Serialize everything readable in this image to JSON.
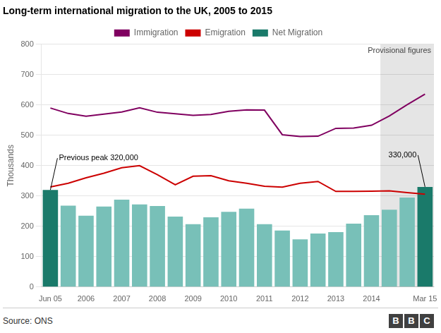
{
  "chart_data": {
    "type": "bar",
    "title": "Long-term international migration to the UK, 2005 to 2015",
    "ylabel": "Thousands",
    "categories": [
      "Jun 05",
      null,
      "2006",
      null,
      "2007",
      null,
      "2008",
      null,
      "2009",
      null,
      "2010",
      null,
      "2011",
      null,
      "2012",
      null,
      "2013",
      null,
      "2014",
      null,
      null,
      "Mar 15"
    ],
    "series": [
      {
        "name": "Net Migration",
        "type": "bar",
        "color": "#1a7a6a",
        "colors": [
          "#1a7a6a",
          "#78c0b8",
          "#78c0b8",
          "#78c0b8",
          "#78c0b8",
          "#78c0b8",
          "#78c0b8",
          "#78c0b8",
          "#78c0b8",
          "#78c0b8",
          "#78c0b8",
          "#78c0b8",
          "#78c0b8",
          "#78c0b8",
          "#78c0b8",
          "#78c0b8",
          "#78c0b8",
          "#78c0b8",
          "#78c0b8",
          "#78c0b8",
          "#78c0b8",
          "#1a7a6a"
        ],
        "values": [
          320,
          268,
          235,
          265,
          288,
          272,
          267,
          232,
          207,
          230,
          248,
          258,
          207,
          186,
          157,
          176,
          181,
          209,
          237,
          255,
          295,
          330
        ]
      },
      {
        "name": "Immigration",
        "type": "line",
        "color": "#800060",
        "values": [
          590,
          572,
          563,
          570,
          577,
          591,
          576,
          571,
          566,
          569,
          579,
          584,
          583,
          502,
          496,
          497,
          523,
          524,
          533,
          564,
          601,
          636
        ]
      },
      {
        "name": "Emigration",
        "type": "line",
        "color": "#cc0000",
        "values": [
          330,
          342,
          360,
          375,
          393,
          400,
          370,
          337,
          365,
          367,
          350,
          342,
          332,
          329,
          342,
          348,
          315,
          315,
          316,
          317,
          311,
          306
        ]
      }
    ],
    "ylim": [
      0,
      800
    ],
    "yticks": [
      0,
      100,
      200,
      300,
      400,
      500,
      600,
      700,
      800
    ],
    "grid": true,
    "legend": "top",
    "annotations": [
      {
        "text": "Provisional figures",
        "from": 19,
        "to": 21,
        "color": "#e5e5e5"
      },
      {
        "text": "Previous peak 320,000",
        "x": 0,
        "y": 320
      },
      {
        "text": "330,000",
        "x": 21,
        "y": 330
      }
    ],
    "source": "Source: ONS",
    "logo": "BBC"
  }
}
